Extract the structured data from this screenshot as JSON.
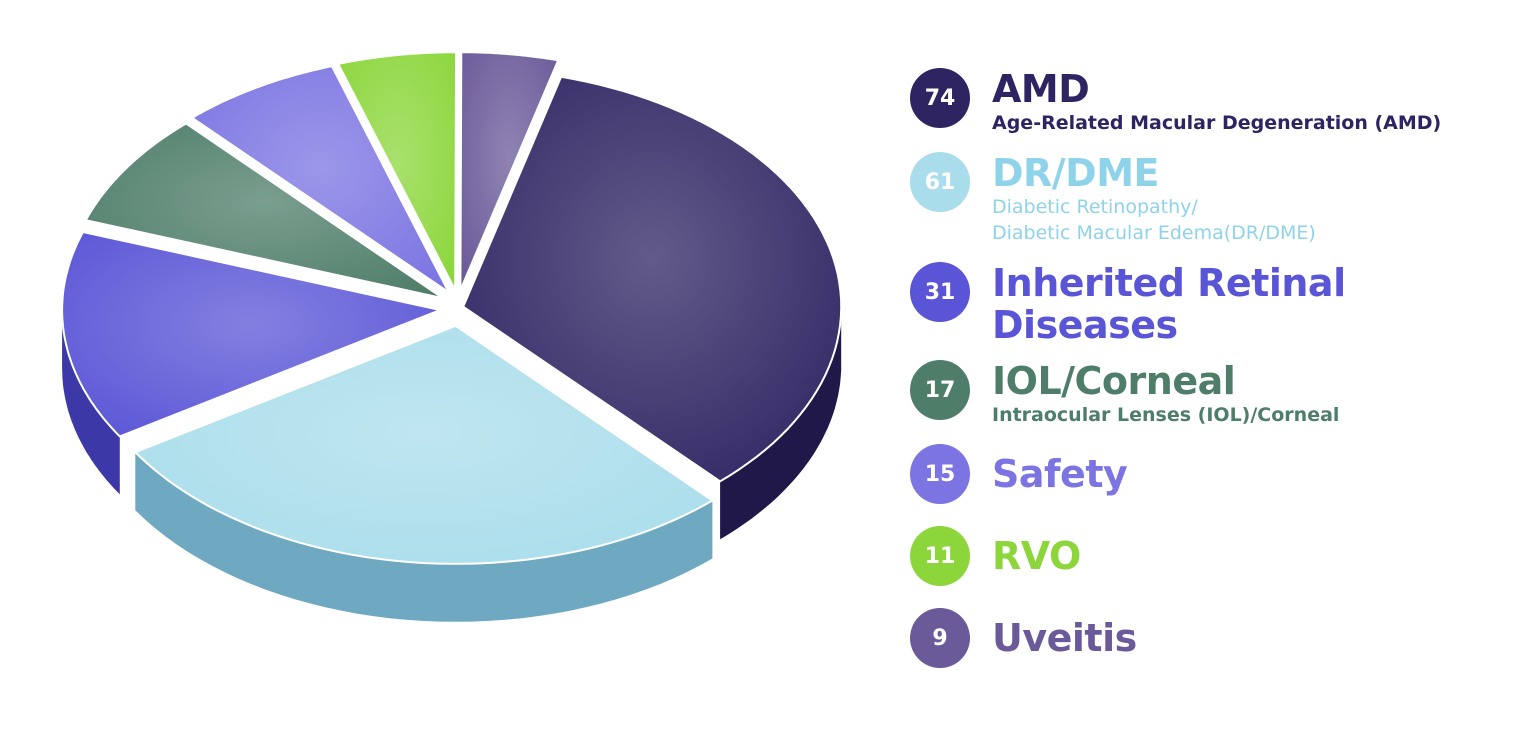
{
  "chart_data": {
    "type": "pie",
    "title": "",
    "style": "3d-exploded",
    "slices": [
      {
        "key": "amd",
        "value": 74,
        "label": "AMD",
        "description": "Age-Related Macular Degeneration (AMD)",
        "color": "#2E2462",
        "dark": "#1F1848"
      },
      {
        "key": "drdme",
        "value": 61,
        "label": "DR/DME",
        "description": "Diabetic Retinopathy/ Diabetic Macular Edema(DR/DME)",
        "description_lines": [
          "Diabetic Retinopathy/",
          "Diabetic Macular Edema(DR/DME)"
        ],
        "color": "#A9DDEB",
        "dark": "#6FA9C1"
      },
      {
        "key": "ird",
        "value": 31,
        "label": "Inherited Retinal Diseases",
        "label_lines": [
          "Inherited Retinal",
          "Diseases"
        ],
        "color": "#5A55D6",
        "dark": "#3C38A8"
      },
      {
        "key": "iol",
        "value": 17,
        "label": "IOL/Corneal",
        "description": "Intraocular Lenses (IOL)/Corneal",
        "color": "#4E7D69",
        "dark": "#3A5E4F"
      },
      {
        "key": "safety",
        "value": 15,
        "label": "Safety",
        "color": "#7B74E2",
        "dark": "#5750B8"
      },
      {
        "key": "rvo",
        "value": 11,
        "label": "RVO",
        "color": "#8CD63C",
        "dark": "#66A627"
      },
      {
        "key": "uveitis",
        "value": 9,
        "label": "Uveitis",
        "color": "#6A5A99",
        "dark": "#4D4175"
      }
    ],
    "legend_position": "right"
  },
  "legend": {
    "title_colors": {
      "amd": "#2E2462",
      "drdme": "#8FD3EA",
      "ird": "#5A55D6",
      "iol": "#4E7D69",
      "safety": "#7B74E2",
      "rvo": "#8CD63C",
      "uveitis": "#6A5A99"
    },
    "sub_colors": {
      "amd": "#2E2462",
      "drdme": "#8FD3EA",
      "iol": "#4E7D69"
    }
  }
}
